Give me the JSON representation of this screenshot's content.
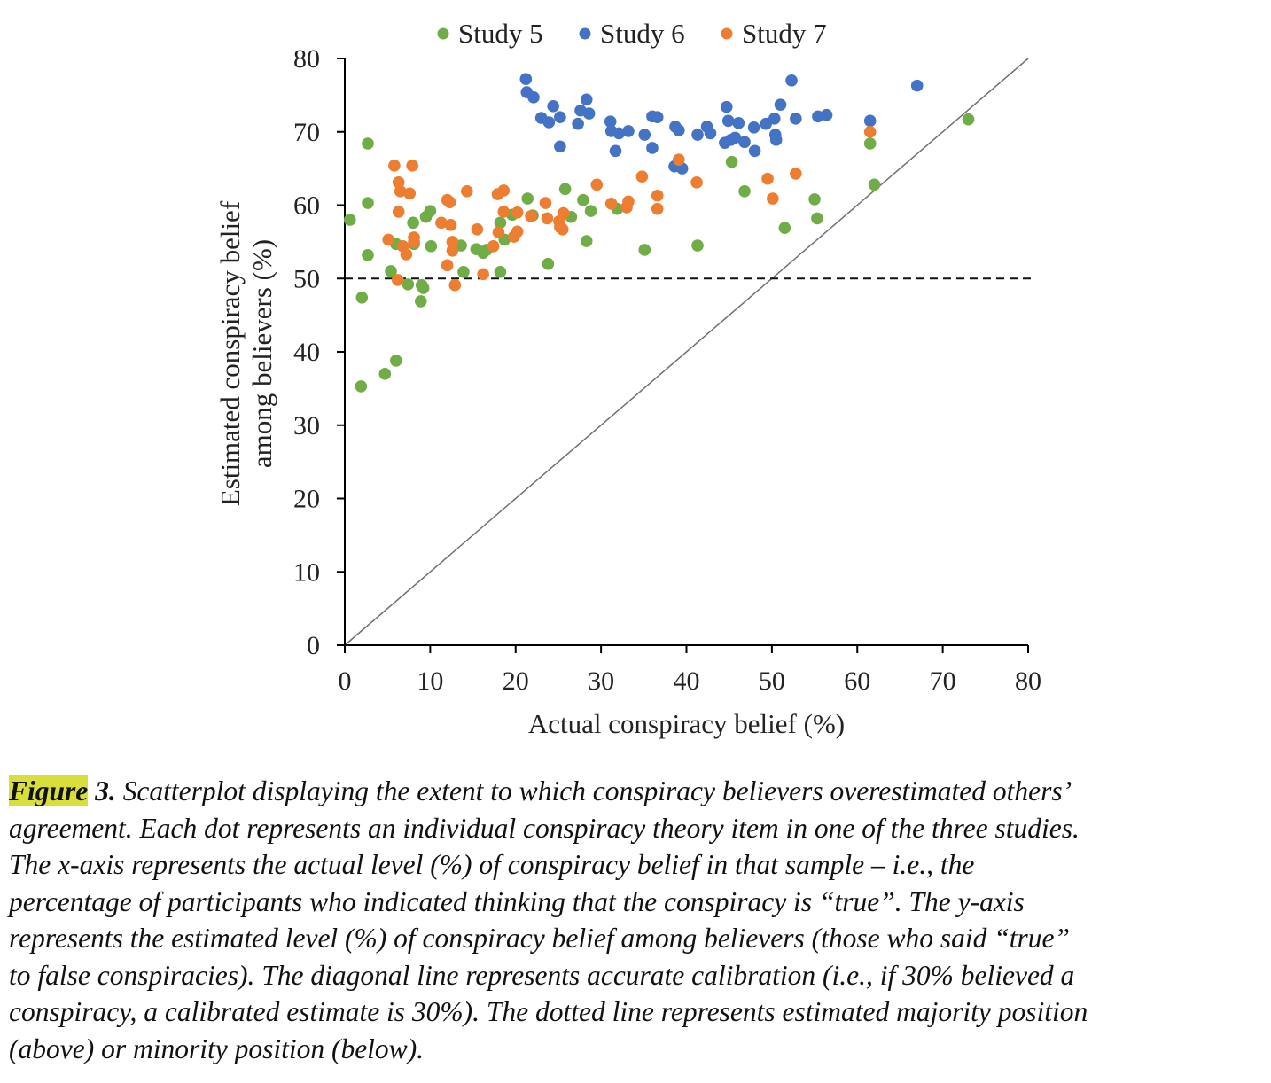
{
  "chart_data": {
    "type": "scatter",
    "xlabel": "Actual conspiracy belief (%)",
    "ylabel_lines": [
      "Estimated conspiracy belief",
      "among believers (%)"
    ],
    "xlim": [
      0,
      80
    ],
    "ylim": [
      0,
      80
    ],
    "xticks": [
      0,
      10,
      20,
      30,
      40,
      50,
      60,
      70,
      80
    ],
    "yticks": [
      0,
      10,
      20,
      30,
      40,
      50,
      60,
      70,
      80
    ],
    "grid": false,
    "legend_position": "top-center",
    "reference_lines": [
      {
        "type": "diagonal",
        "from": [
          0,
          0
        ],
        "to": [
          80,
          80
        ],
        "color": "#707070"
      },
      {
        "type": "horizontal-dashed",
        "y": 50,
        "color": "#111111"
      }
    ],
    "series": [
      {
        "name": "Study 5",
        "color": "#70ad47",
        "points": [
          [
            0.6,
            58.0
          ],
          [
            2.0,
            47.4
          ],
          [
            2.7,
            68.4
          ],
          [
            2.7,
            60.3
          ],
          [
            2.7,
            53.2
          ],
          [
            1.9,
            35.3
          ],
          [
            4.7,
            37.0
          ],
          [
            6.0,
            38.8
          ],
          [
            5.4,
            51.0
          ],
          [
            6.0,
            54.7
          ],
          [
            7.4,
            49.2
          ],
          [
            8.0,
            57.6
          ],
          [
            8.1,
            54.7
          ],
          [
            8.9,
            46.9
          ],
          [
            9.0,
            49.1
          ],
          [
            9.2,
            48.7
          ],
          [
            9.5,
            58.4
          ],
          [
            10.0,
            59.2
          ],
          [
            10.1,
            54.4
          ],
          [
            13.6,
            54.5
          ],
          [
            13.9,
            50.9
          ],
          [
            15.4,
            54.0
          ],
          [
            16.2,
            53.5
          ],
          [
            16.6,
            53.9
          ],
          [
            18.2,
            50.9
          ],
          [
            18.2,
            57.6
          ],
          [
            18.7,
            55.3
          ],
          [
            19.6,
            58.7
          ],
          [
            21.4,
            60.9
          ],
          [
            22.0,
            58.6
          ],
          [
            23.8,
            52.0
          ],
          [
            25.8,
            62.2
          ],
          [
            26.5,
            58.4
          ],
          [
            27.9,
            60.7
          ],
          [
            28.3,
            55.1
          ],
          [
            28.8,
            59.2
          ],
          [
            31.9,
            59.5
          ],
          [
            35.1,
            53.9
          ],
          [
            41.3,
            54.5
          ],
          [
            45.3,
            65.9
          ],
          [
            46.8,
            61.9
          ],
          [
            51.5,
            56.9
          ],
          [
            55.0,
            60.8
          ],
          [
            55.3,
            58.2
          ],
          [
            61.5,
            68.4
          ],
          [
            62.0,
            62.8
          ],
          [
            73.0,
            71.7
          ]
        ]
      },
      {
        "name": "Study 6",
        "color": "#4472c4",
        "points": [
          [
            21.2,
            77.2
          ],
          [
            21.3,
            75.4
          ],
          [
            22.1,
            74.7
          ],
          [
            23.0,
            71.9
          ],
          [
            24.4,
            73.5
          ],
          [
            23.9,
            71.3
          ],
          [
            25.2,
            72.0
          ],
          [
            25.2,
            68.0
          ],
          [
            27.3,
            71.1
          ],
          [
            27.6,
            72.9
          ],
          [
            28.3,
            74.4
          ],
          [
            28.6,
            72.5
          ],
          [
            31.1,
            71.4
          ],
          [
            31.2,
            70.1
          ],
          [
            31.7,
            67.4
          ],
          [
            32.1,
            69.8
          ],
          [
            33.2,
            70.1
          ],
          [
            35.1,
            69.6
          ],
          [
            36.0,
            72.1
          ],
          [
            36.6,
            72.0
          ],
          [
            36.0,
            67.8
          ],
          [
            38.7,
            70.7
          ],
          [
            39.1,
            70.2
          ],
          [
            39.5,
            65.0
          ],
          [
            38.6,
            65.3
          ],
          [
            41.3,
            69.6
          ],
          [
            42.4,
            70.7
          ],
          [
            42.8,
            69.8
          ],
          [
            44.7,
            73.4
          ],
          [
            44.9,
            71.5
          ],
          [
            44.5,
            68.5
          ],
          [
            45.2,
            68.9
          ],
          [
            45.7,
            69.2
          ],
          [
            46.1,
            71.2
          ],
          [
            46.8,
            68.6
          ],
          [
            47.9,
            70.6
          ],
          [
            48.0,
            67.4
          ],
          [
            49.3,
            71.1
          ],
          [
            50.3,
            71.8
          ],
          [
            50.5,
            68.9
          ],
          [
            50.4,
            69.6
          ],
          [
            51.0,
            73.7
          ],
          [
            52.3,
            77.0
          ],
          [
            52.8,
            71.8
          ],
          [
            55.4,
            72.1
          ],
          [
            56.4,
            72.3
          ],
          [
            61.5,
            71.5
          ],
          [
            67.0,
            76.3
          ]
        ]
      },
      {
        "name": "Study 7",
        "color": "#ed7d31",
        "points": [
          [
            5.1,
            55.3
          ],
          [
            5.8,
            65.4
          ],
          [
            6.3,
            63.1
          ],
          [
            6.5,
            61.9
          ],
          [
            6.3,
            59.1
          ],
          [
            6.2,
            49.8
          ],
          [
            6.8,
            54.4
          ],
          [
            7.2,
            53.3
          ],
          [
            7.6,
            61.6
          ],
          [
            7.9,
            65.4
          ],
          [
            8.1,
            55.6
          ],
          [
            8.1,
            55.0
          ],
          [
            11.3,
            57.6
          ],
          [
            12.0,
            60.7
          ],
          [
            12.3,
            60.4
          ],
          [
            12.4,
            57.3
          ],
          [
            12.0,
            51.8
          ],
          [
            12.6,
            55.0
          ],
          [
            12.6,
            53.8
          ],
          [
            12.9,
            49.1
          ],
          [
            14.3,
            61.9
          ],
          [
            15.5,
            56.7
          ],
          [
            16.2,
            50.6
          ],
          [
            17.9,
            61.5
          ],
          [
            17.4,
            54.4
          ],
          [
            18.0,
            56.3
          ],
          [
            18.6,
            62.0
          ],
          [
            18.6,
            59.1
          ],
          [
            19.8,
            55.7
          ],
          [
            20.2,
            56.4
          ],
          [
            20.2,
            59.0
          ],
          [
            21.8,
            58.5
          ],
          [
            23.5,
            60.3
          ],
          [
            23.7,
            58.2
          ],
          [
            25.2,
            57.0
          ],
          [
            25.5,
            56.7
          ],
          [
            25.6,
            58.9
          ],
          [
            25.1,
            57.8
          ],
          [
            29.5,
            62.8
          ],
          [
            31.2,
            60.2
          ],
          [
            33.0,
            59.7
          ],
          [
            33.2,
            60.5
          ],
          [
            34.8,
            63.9
          ],
          [
            36.6,
            61.3
          ],
          [
            36.6,
            59.5
          ],
          [
            39.1,
            66.2
          ],
          [
            41.2,
            63.1
          ],
          [
            49.5,
            63.6
          ],
          [
            50.1,
            60.9
          ],
          [
            52.8,
            64.3
          ],
          [
            61.5,
            70.0
          ]
        ]
      }
    ]
  },
  "caption": {
    "label": "Figure",
    "number": " 3.",
    "lines": [
      " Scatterplot displaying the extent to which conspiracy believers overestimated others’",
      "agreement. Each dot represents an individual conspiracy theory item in one of the three studies.",
      "The x-axis represents the actual level (%) of conspiracy belief in that sample – i.e., the",
      "percentage of participants who indicated thinking that the conspiracy is “true”. The y-axis",
      "represents the estimated level (%) of conspiracy belief among believers (those who said “true”",
      "to false conspiracies). The diagonal line represents accurate calibration (i.e., if 30% believed a",
      "conspiracy, a calibrated estimate is 30%). The dotted line represents estimated majority position",
      "(above) or minority position (below)."
    ]
  }
}
